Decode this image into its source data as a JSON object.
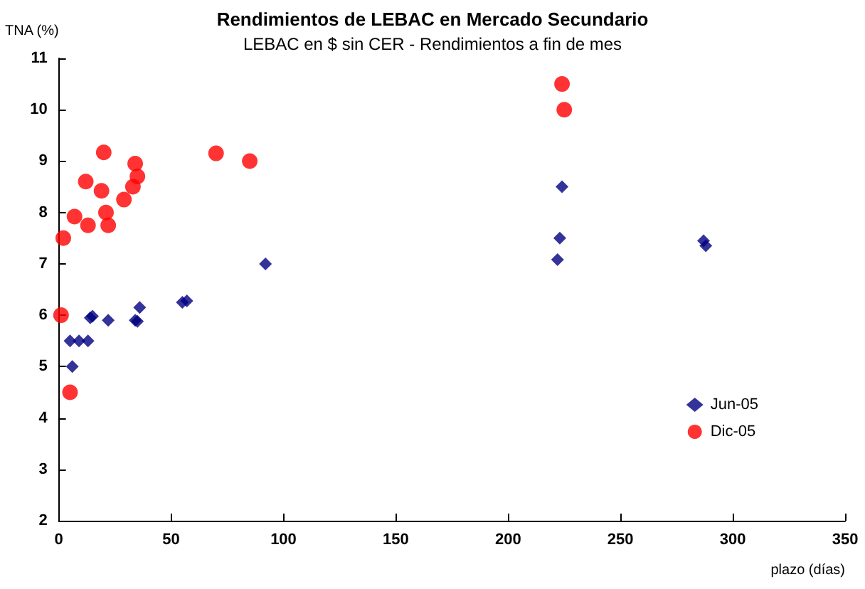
{
  "chart_data": {
    "type": "scatter",
    "title": "Rendimientos de LEBAC en Mercado Secundario",
    "subtitle": "LEBAC en $ sin CER - Rendimientos a fin de mes",
    "xlabel": "plazo (días)",
    "ylabel": "TNA (%)",
    "xlim": [
      0,
      350
    ],
    "xticks": [
      0,
      50,
      100,
      150,
      200,
      250,
      300,
      350
    ],
    "ylim": [
      2,
      11
    ],
    "yticks": [
      2,
      3,
      4,
      5,
      6,
      7,
      8,
      9,
      10,
      11
    ],
    "grid": false,
    "legend": "bottom right",
    "series": [
      {
        "name": "Jun-05",
        "color": "#000080",
        "marker": "diamond",
        "x": [
          92,
          36,
          55,
          57,
          15,
          14,
          22,
          34,
          35,
          5,
          9,
          13,
          6,
          224,
          223,
          222,
          287,
          288
        ],
        "values": [
          7.0,
          6.15,
          6.25,
          6.28,
          5.98,
          5.95,
          5.9,
          5.9,
          5.88,
          5.5,
          5.5,
          5.5,
          5.0,
          8.5,
          7.5,
          7.08,
          7.45,
          7.35
        ]
      },
      {
        "name": "Dic-05",
        "color": "#ff0000",
        "marker": "circle",
        "x": [
          20,
          12,
          19,
          34,
          35,
          33,
          29,
          21,
          7,
          13,
          22,
          2,
          70,
          85,
          1,
          5,
          224,
          225
        ],
        "values": [
          9.17,
          8.6,
          8.42,
          8.95,
          8.7,
          8.5,
          8.25,
          8.0,
          7.92,
          7.75,
          7.75,
          7.5,
          9.15,
          9.0,
          6.0,
          4.5,
          10.5,
          10.0
        ]
      }
    ]
  }
}
